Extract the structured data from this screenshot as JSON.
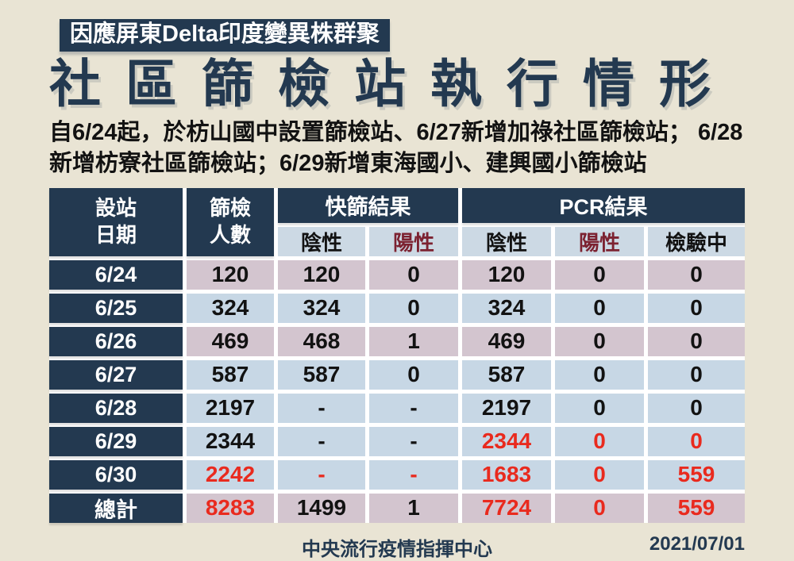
{
  "badge": {
    "label": "因應屏東Delta印度變異株群聚"
  },
  "title": "社區篩檢站執行情形",
  "subtitle": {
    "line1": "自6/24起，於枋山國中設置篩檢站、6/27新增加祿社區篩檢站； 6/28",
    "line2": "新增枋寮社區篩檢站；6/29新增東海國小、建興國小篩檢站"
  },
  "table": {
    "header": {
      "date_col": "設站\n日期",
      "count_col": "篩檢\n人數",
      "rapid_group": "快篩結果",
      "pcr_group": "PCR結果",
      "sub": [
        {
          "key": "rapid-negative",
          "label": "陰性",
          "color": "dark"
        },
        {
          "key": "rapid-positive",
          "label": "陽性",
          "color": "maroon"
        },
        {
          "key": "pcr-negative",
          "label": "陰性",
          "color": "dark"
        },
        {
          "key": "pcr-positive",
          "label": "陽性",
          "color": "maroon"
        },
        {
          "key": "pcr-pending",
          "label": "檢驗中",
          "color": "dark"
        }
      ],
      "value_col_keys": [
        "screened-count",
        "rapid-negative",
        "rapid-positive",
        "pcr-negative",
        "pcr-positive",
        "pcr-pending"
      ]
    },
    "rows": [
      {
        "date": "6/24",
        "tone": "pink",
        "cells": [
          {
            "v": "120",
            "color": "dark"
          },
          {
            "v": "120",
            "color": "dark"
          },
          {
            "v": "0",
            "color": "dark"
          },
          {
            "v": "120",
            "color": "dark"
          },
          {
            "v": "0",
            "color": "dark"
          },
          {
            "v": "0",
            "color": "dark"
          }
        ]
      },
      {
        "date": "6/25",
        "tone": "blue",
        "cells": [
          {
            "v": "324",
            "color": "dark"
          },
          {
            "v": "324",
            "color": "dark"
          },
          {
            "v": "0",
            "color": "dark"
          },
          {
            "v": "324",
            "color": "dark"
          },
          {
            "v": "0",
            "color": "dark"
          },
          {
            "v": "0",
            "color": "dark"
          }
        ]
      },
      {
        "date": "6/26",
        "tone": "pink",
        "cells": [
          {
            "v": "469",
            "color": "dark"
          },
          {
            "v": "468",
            "color": "dark"
          },
          {
            "v": "1",
            "color": "dark"
          },
          {
            "v": "469",
            "color": "dark"
          },
          {
            "v": "0",
            "color": "dark"
          },
          {
            "v": "0",
            "color": "dark"
          }
        ]
      },
      {
        "date": "6/27",
        "tone": "blue",
        "cells": [
          {
            "v": "587",
            "color": "dark"
          },
          {
            "v": "587",
            "color": "dark"
          },
          {
            "v": "0",
            "color": "dark"
          },
          {
            "v": "587",
            "color": "dark"
          },
          {
            "v": "0",
            "color": "dark"
          },
          {
            "v": "0",
            "color": "dark"
          }
        ]
      },
      {
        "date": "6/28",
        "tone": "blue",
        "cells": [
          {
            "v": "2197",
            "color": "dark"
          },
          {
            "v": "-",
            "color": "dark"
          },
          {
            "v": "-",
            "color": "dark"
          },
          {
            "v": "2197",
            "color": "dark"
          },
          {
            "v": "0",
            "color": "dark"
          },
          {
            "v": "0",
            "color": "dark"
          }
        ]
      },
      {
        "date": "6/29",
        "tone": "blue",
        "cells": [
          {
            "v": "2344",
            "color": "dark"
          },
          {
            "v": "-",
            "color": "dark"
          },
          {
            "v": "-",
            "color": "dark"
          },
          {
            "v": "2344",
            "color": "red"
          },
          {
            "v": "0",
            "color": "red"
          },
          {
            "v": "0",
            "color": "red"
          }
        ]
      },
      {
        "date": "6/30",
        "tone": "blue",
        "cells": [
          {
            "v": "2242",
            "color": "red"
          },
          {
            "v": "-",
            "color": "red"
          },
          {
            "v": "-",
            "color": "red"
          },
          {
            "v": "1683",
            "color": "red"
          },
          {
            "v": "0",
            "color": "red"
          },
          {
            "v": "559",
            "color": "red"
          }
        ]
      },
      {
        "date": "總計",
        "tone": "pink",
        "cells": [
          {
            "v": "8283",
            "color": "red"
          },
          {
            "v": "1499",
            "color": "dark"
          },
          {
            "v": "1",
            "color": "dark"
          },
          {
            "v": "7724",
            "color": "red"
          },
          {
            "v": "0",
            "color": "red"
          },
          {
            "v": "559",
            "color": "red"
          }
        ]
      }
    ]
  },
  "footer": {
    "org": "中央流行疫情指揮中心",
    "date": "2021/07/01"
  },
  "colors": {
    "cream": "#e9e4d4",
    "navy": "#233950",
    "pink": "#d3c5cf",
    "blue": "#c7d7e5",
    "subblue": "#ccd9e4",
    "maroon": "#7c2231",
    "red": "#e92a1e",
    "dark": "#121212"
  }
}
